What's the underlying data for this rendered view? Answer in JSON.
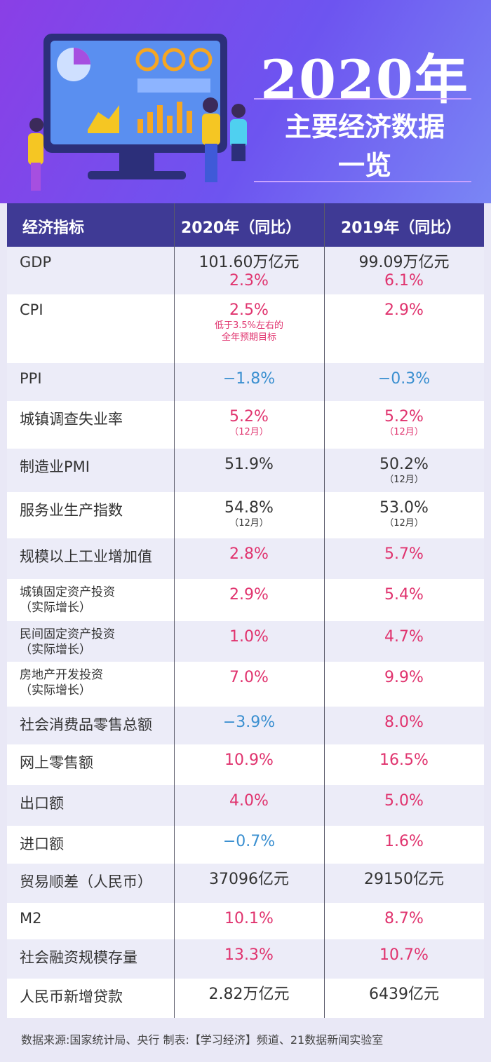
{
  "header": {
    "title": "2020年",
    "subtitle_1": "主要经济数据",
    "subtitle_2": "一览"
  },
  "table": {
    "columns": [
      "经济指标",
      "2020年（同比）",
      "2019年（同比）"
    ],
    "rows": [
      {
        "indicator": [
          "GDP"
        ],
        "y2020": [
          {
            "text": "101.60万亿元",
            "color": "#333333"
          },
          {
            "text": "2.3%",
            "color": "#e0336e"
          }
        ],
        "y2019": [
          {
            "text": "99.09万亿元",
            "color": "#333333"
          },
          {
            "text": "6.1%",
            "color": "#e0336e"
          }
        ]
      },
      {
        "indicator": [
          "CPI"
        ],
        "y2020": [
          {
            "text": "2.5%",
            "color": "#e0336e"
          },
          {
            "text": "低于3.5%左右的",
            "color": "#e0336e"
          },
          {
            "text": "全年预期目标",
            "color": "#e0336e"
          }
        ],
        "y2019": [
          {
            "text": "2.9%",
            "color": "#e0336e"
          }
        ]
      },
      {
        "indicator": [
          "PPI"
        ],
        "y2020": [
          {
            "text": "−1.8%",
            "color": "#3a8fd0"
          }
        ],
        "y2019": [
          {
            "text": "−0.3%",
            "color": "#3a8fd0"
          }
        ]
      },
      {
        "indicator": [
          "城镇调查失业率"
        ],
        "y2020": [
          {
            "text": "5.2%",
            "color": "#e0336e"
          },
          {
            "text": "（12月）",
            "color": "#e0336e"
          }
        ],
        "y2019": [
          {
            "text": "5.2%",
            "color": "#e0336e"
          },
          {
            "text": "（12月）",
            "color": "#e0336e"
          }
        ]
      },
      {
        "indicator": [
          "制造业PMI"
        ],
        "y2020": [
          {
            "text": "51.9%",
            "color": "#333333"
          }
        ],
        "y2019": [
          {
            "text": "50.2%",
            "color": "#333333"
          },
          {
            "text": "（12月）",
            "color": "#333333"
          }
        ]
      },
      {
        "indicator": [
          "服务业生产指数"
        ],
        "y2020": [
          {
            "text": "54.8%",
            "color": "#333333"
          },
          {
            "text": "（12月）",
            "color": "#333333"
          }
        ],
        "y2019": [
          {
            "text": "53.0%",
            "color": "#333333"
          },
          {
            "text": "（12月）",
            "color": "#333333"
          }
        ]
      },
      {
        "indicator": [
          "规模以上工业增加值"
        ],
        "y2020": [
          {
            "text": "2.8%",
            "color": "#e0336e"
          }
        ],
        "y2019": [
          {
            "text": "5.7%",
            "color": "#e0336e"
          }
        ]
      },
      {
        "indicator": [
          "城镇固定资产投资",
          "（实际增长）"
        ],
        "y2020": [
          {
            "text": "2.9%",
            "color": "#e0336e"
          }
        ],
        "y2019": [
          {
            "text": "5.4%",
            "color": "#e0336e"
          }
        ]
      },
      {
        "indicator": [
          "民间固定资产投资",
          "（实际增长）"
        ],
        "y2020": [
          {
            "text": "1.0%",
            "color": "#e0336e"
          }
        ],
        "y2019": [
          {
            "text": "4.7%",
            "color": "#e0336e"
          }
        ]
      },
      {
        "indicator": [
          "房地产开发投资",
          "（实际增长）"
        ],
        "y2020": [
          {
            "text": "7.0%",
            "color": "#e0336e"
          }
        ],
        "y2019": [
          {
            "text": "9.9%",
            "color": "#e0336e"
          }
        ]
      },
      {
        "indicator": [
          "社会消费品零售总额"
        ],
        "y2020": [
          {
            "text": "−3.9%",
            "color": "#3a8fd0"
          }
        ],
        "y2019": [
          {
            "text": "8.0%",
            "color": "#e0336e"
          }
        ]
      },
      {
        "indicator": [
          "网上零售额"
        ],
        "y2020": [
          {
            "text": "10.9%",
            "color": "#e0336e"
          }
        ],
        "y2019": [
          {
            "text": "16.5%",
            "color": "#e0336e"
          }
        ]
      },
      {
        "indicator": [
          "出口额"
        ],
        "y2020": [
          {
            "text": "4.0%",
            "color": "#e0336e"
          }
        ],
        "y2019": [
          {
            "text": "5.0%",
            "color": "#e0336e"
          }
        ]
      },
      {
        "indicator": [
          "进口额"
        ],
        "y2020": [
          {
            "text": "−0.7%",
            "color": "#3a8fd0"
          }
        ],
        "y2019": [
          {
            "text": "1.6%",
            "color": "#e0336e"
          }
        ]
      },
      {
        "indicator": [
          "贸易顺差（人民币）"
        ],
        "y2020": [
          {
            "text": "37096亿元",
            "color": "#333333"
          }
        ],
        "y2019": [
          {
            "text": "29150亿元",
            "color": "#333333"
          }
        ]
      },
      {
        "indicator": [
          "M2"
        ],
        "y2020": [
          {
            "text": "10.1%",
            "color": "#e0336e"
          }
        ],
        "y2019": [
          {
            "text": "8.7%",
            "color": "#e0336e"
          }
        ]
      },
      {
        "indicator": [
          "社会融资规模存量"
        ],
        "y2020": [
          {
            "text": "13.3%",
            "color": "#e0336e"
          }
        ],
        "y2019": [
          {
            "text": "10.7%",
            "color": "#e0336e"
          }
        ]
      },
      {
        "indicator": [
          "人民币新增贷款"
        ],
        "y2020": [
          {
            "text": "2.82万亿元",
            "color": "#333333"
          }
        ],
        "y2019": [
          {
            "text": "6439亿元",
            "color": "#333333"
          }
        ]
      }
    ]
  },
  "footer": {
    "source": "数据来源:国家统计局、央行  制表:【学习经济】频道、21数据新闻实验室"
  }
}
